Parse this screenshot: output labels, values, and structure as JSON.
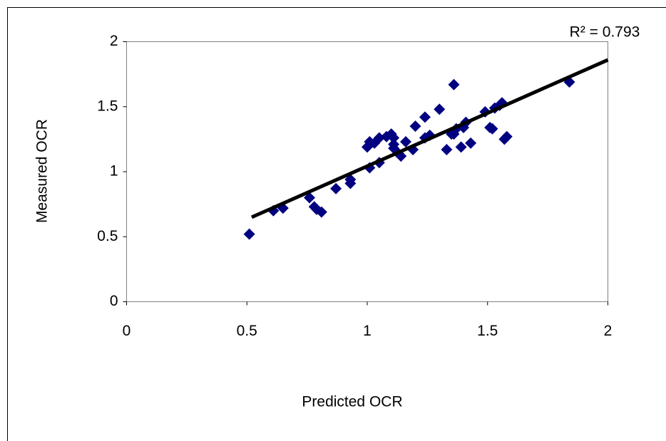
{
  "chart_data": {
    "type": "scatter",
    "x_label": "Predicted OCR",
    "y_label": "Measured OCR",
    "annotation": "R² = 0.793",
    "xlim": [
      0,
      2
    ],
    "ylim": [
      0,
      2
    ],
    "xticks": [
      0,
      0.5,
      1,
      1.5,
      2
    ],
    "yticks": [
      0,
      0.5,
      1,
      1.5,
      2
    ],
    "grid": false,
    "color": "#000080",
    "x": [
      0.51,
      0.61,
      0.65,
      0.76,
      0.78,
      0.79,
      0.81,
      0.87,
      0.93,
      0.93,
      1.01,
      1.0,
      1.01,
      1.03,
      1.05,
      1.05,
      1.08,
      1.1,
      1.11,
      1.11,
      1.11,
      1.13,
      1.14,
      1.16,
      1.19,
      1.2,
      1.24,
      1.24,
      1.26,
      1.3,
      1.33,
      1.35,
      1.36,
      1.36,
      1.37,
      1.39,
      1.4,
      1.41,
      1.43,
      1.49,
      1.51,
      1.52,
      1.53,
      1.55,
      1.56,
      1.58,
      1.57,
      1.84
    ],
    "y": [
      0.52,
      0.7,
      0.72,
      0.8,
      0.73,
      0.71,
      0.69,
      0.87,
      0.91,
      0.94,
      1.03,
      1.19,
      1.23,
      1.22,
      1.26,
      1.07,
      1.27,
      1.29,
      1.26,
      1.21,
      1.18,
      1.14,
      1.12,
      1.23,
      1.17,
      1.35,
      1.42,
      1.26,
      1.28,
      1.48,
      1.17,
      1.29,
      1.29,
      1.67,
      1.33,
      1.19,
      1.34,
      1.38,
      1.22,
      1.46,
      1.34,
      1.33,
      1.49,
      1.51,
      1.53,
      1.27,
      1.25,
      1.69
    ],
    "trendline": {
      "color": "#000000",
      "x": [
        0.52,
        2
      ],
      "y": [
        0.65,
        1.86
      ]
    }
  }
}
